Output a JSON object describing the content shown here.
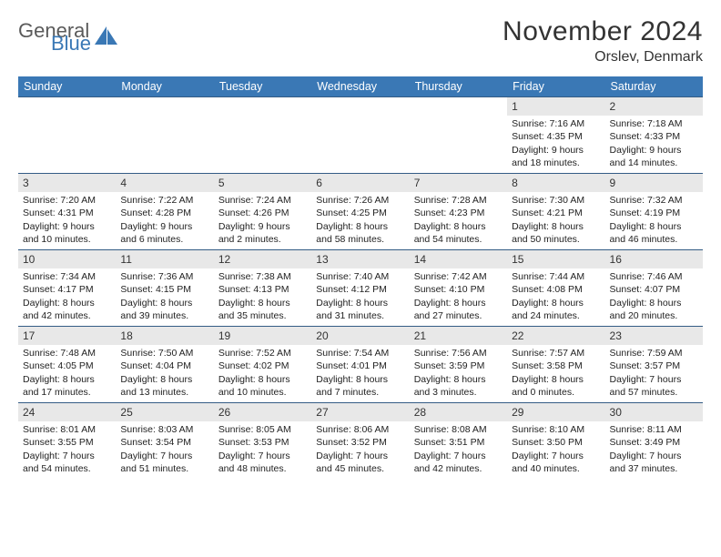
{
  "logo": {
    "word1": "General",
    "word2": "Blue"
  },
  "header": {
    "title": "November 2024",
    "location": "Orslev, Denmark"
  },
  "colors": {
    "header_bg": "#3a78b5",
    "border": "#345c85",
    "daynum_bg": "#e8e8e8",
    "text": "#222222"
  },
  "dayNames": [
    "Sunday",
    "Monday",
    "Tuesday",
    "Wednesday",
    "Thursday",
    "Friday",
    "Saturday"
  ],
  "weeks": [
    [
      null,
      null,
      null,
      null,
      null,
      {
        "n": "1",
        "sr": "7:16 AM",
        "ss": "4:35 PM",
        "dl": "9 hours and 18 minutes."
      },
      {
        "n": "2",
        "sr": "7:18 AM",
        "ss": "4:33 PM",
        "dl": "9 hours and 14 minutes."
      }
    ],
    [
      {
        "n": "3",
        "sr": "7:20 AM",
        "ss": "4:31 PM",
        "dl": "9 hours and 10 minutes."
      },
      {
        "n": "4",
        "sr": "7:22 AM",
        "ss": "4:28 PM",
        "dl": "9 hours and 6 minutes."
      },
      {
        "n": "5",
        "sr": "7:24 AM",
        "ss": "4:26 PM",
        "dl": "9 hours and 2 minutes."
      },
      {
        "n": "6",
        "sr": "7:26 AM",
        "ss": "4:25 PM",
        "dl": "8 hours and 58 minutes."
      },
      {
        "n": "7",
        "sr": "7:28 AM",
        "ss": "4:23 PM",
        "dl": "8 hours and 54 minutes."
      },
      {
        "n": "8",
        "sr": "7:30 AM",
        "ss": "4:21 PM",
        "dl": "8 hours and 50 minutes."
      },
      {
        "n": "9",
        "sr": "7:32 AM",
        "ss": "4:19 PM",
        "dl": "8 hours and 46 minutes."
      }
    ],
    [
      {
        "n": "10",
        "sr": "7:34 AM",
        "ss": "4:17 PM",
        "dl": "8 hours and 42 minutes."
      },
      {
        "n": "11",
        "sr": "7:36 AM",
        "ss": "4:15 PM",
        "dl": "8 hours and 39 minutes."
      },
      {
        "n": "12",
        "sr": "7:38 AM",
        "ss": "4:13 PM",
        "dl": "8 hours and 35 minutes."
      },
      {
        "n": "13",
        "sr": "7:40 AM",
        "ss": "4:12 PM",
        "dl": "8 hours and 31 minutes."
      },
      {
        "n": "14",
        "sr": "7:42 AM",
        "ss": "4:10 PM",
        "dl": "8 hours and 27 minutes."
      },
      {
        "n": "15",
        "sr": "7:44 AM",
        "ss": "4:08 PM",
        "dl": "8 hours and 24 minutes."
      },
      {
        "n": "16",
        "sr": "7:46 AM",
        "ss": "4:07 PM",
        "dl": "8 hours and 20 minutes."
      }
    ],
    [
      {
        "n": "17",
        "sr": "7:48 AM",
        "ss": "4:05 PM",
        "dl": "8 hours and 17 minutes."
      },
      {
        "n": "18",
        "sr": "7:50 AM",
        "ss": "4:04 PM",
        "dl": "8 hours and 13 minutes."
      },
      {
        "n": "19",
        "sr": "7:52 AM",
        "ss": "4:02 PM",
        "dl": "8 hours and 10 minutes."
      },
      {
        "n": "20",
        "sr": "7:54 AM",
        "ss": "4:01 PM",
        "dl": "8 hours and 7 minutes."
      },
      {
        "n": "21",
        "sr": "7:56 AM",
        "ss": "3:59 PM",
        "dl": "8 hours and 3 minutes."
      },
      {
        "n": "22",
        "sr": "7:57 AM",
        "ss": "3:58 PM",
        "dl": "8 hours and 0 minutes."
      },
      {
        "n": "23",
        "sr": "7:59 AM",
        "ss": "3:57 PM",
        "dl": "7 hours and 57 minutes."
      }
    ],
    [
      {
        "n": "24",
        "sr": "8:01 AM",
        "ss": "3:55 PM",
        "dl": "7 hours and 54 minutes."
      },
      {
        "n": "25",
        "sr": "8:03 AM",
        "ss": "3:54 PM",
        "dl": "7 hours and 51 minutes."
      },
      {
        "n": "26",
        "sr": "8:05 AM",
        "ss": "3:53 PM",
        "dl": "7 hours and 48 minutes."
      },
      {
        "n": "27",
        "sr": "8:06 AM",
        "ss": "3:52 PM",
        "dl": "7 hours and 45 minutes."
      },
      {
        "n": "28",
        "sr": "8:08 AM",
        "ss": "3:51 PM",
        "dl": "7 hours and 42 minutes."
      },
      {
        "n": "29",
        "sr": "8:10 AM",
        "ss": "3:50 PM",
        "dl": "7 hours and 40 minutes."
      },
      {
        "n": "30",
        "sr": "8:11 AM",
        "ss": "3:49 PM",
        "dl": "7 hours and 37 minutes."
      }
    ]
  ],
  "labels": {
    "sunrise": "Sunrise:",
    "sunset": "Sunset:",
    "daylight": "Daylight:"
  }
}
